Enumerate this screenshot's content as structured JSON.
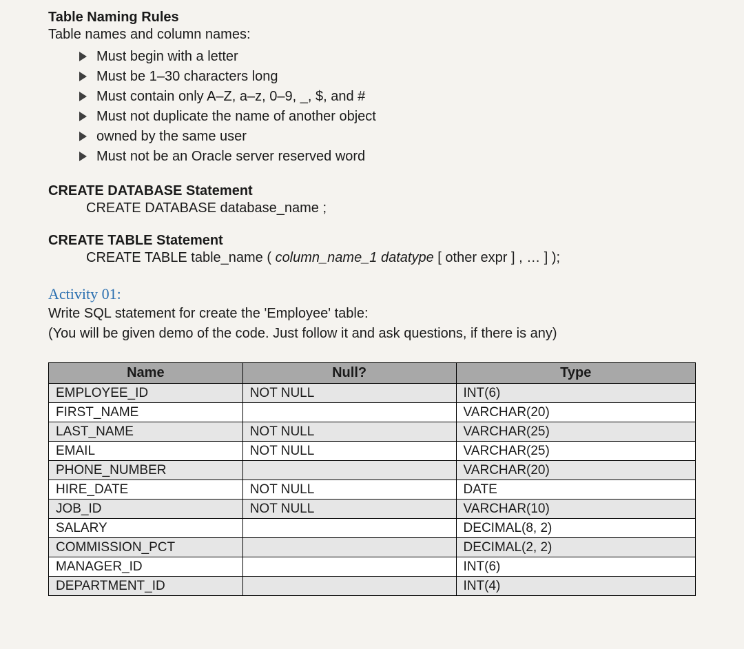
{
  "headings": {
    "naming_rules": "Table Naming Rules",
    "naming_sub": "Table names and column names:",
    "create_db": "CREATE DATABASE Statement",
    "create_db_syntax": "CREATE DATABASE database_name ;",
    "create_table": "CREATE TABLE Statement",
    "create_table_syntax_pre": "CREATE TABLE table_name ( ",
    "create_table_syntax_italic": "column_name_1 datatype",
    "create_table_syntax_post": " [ other expr ] , … ] );"
  },
  "bullets": [
    "Must begin with a letter",
    "Must be 1–30 characters long",
    "Must contain only A–Z, a–z, 0–9, _, $, and #",
    "Must not duplicate the name of another object",
    "owned by the same user",
    "Must not be an Oracle server reserved word"
  ],
  "activity": {
    "label": "Activity 01:",
    "line1": "Write SQL statement for create the 'Employee' table:",
    "line2": "(You will be given demo of the code. Just follow it and ask questions, if there is any)"
  },
  "table": {
    "headers": {
      "name": "Name",
      "null": "Null?",
      "type": "Type"
    },
    "header_bg": "#a8a8a8",
    "row_odd_bg": "#e6e6e6",
    "row_even_bg": "#ffffff",
    "border_color": "#000000",
    "rows": [
      {
        "name": "EMPLOYEE_ID",
        "null": "NOT NULL",
        "type": "INT(6)"
      },
      {
        "name": "FIRST_NAME",
        "null": "",
        "type": "VARCHAR(20)"
      },
      {
        "name": "LAST_NAME",
        "null": "NOT NULL",
        "type": "VARCHAR(25)"
      },
      {
        "name": "EMAIL",
        "null": "NOT NULL",
        "type": "VARCHAR(25)"
      },
      {
        "name": "PHONE_NUMBER",
        "null": "",
        "type": "VARCHAR(20)"
      },
      {
        "name": "HIRE_DATE",
        "null": "NOT NULL",
        "type": "DATE"
      },
      {
        "name": "JOB_ID",
        "null": "NOT NULL",
        "type": "VARCHAR(10)"
      },
      {
        "name": "SALARY",
        "null": "",
        "type": "DECIMAL(8, 2)"
      },
      {
        "name": "COMMISSION_PCT",
        "null": "",
        "type": "DECIMAL(2, 2)"
      },
      {
        "name": "MANAGER_ID",
        "null": "",
        "type": "INT(6)"
      },
      {
        "name": "DEPARTMENT_ID",
        "null": "",
        "type": "INT(4)"
      }
    ]
  }
}
